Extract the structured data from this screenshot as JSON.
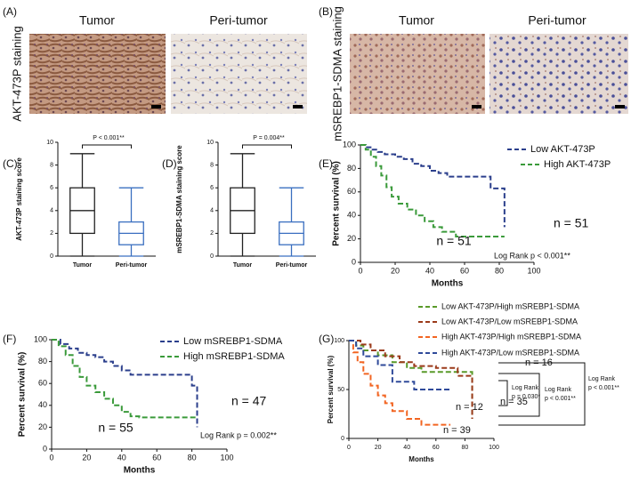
{
  "panels": {
    "A": {
      "label": "(A)",
      "ylabel": "AKT-473P staining",
      "columns": [
        "Tumor",
        "Peri-tumor"
      ]
    },
    "B": {
      "label": "(B)",
      "ylabel": "mSREBP1-SDMA staining",
      "columns": [
        "Tumor",
        "Peri-tumor"
      ]
    }
  },
  "chart_data": [
    {
      "type": "box",
      "panel": "(C)",
      "ylabel": "AKT-473P staining score",
      "categories": [
        "Tumor",
        "Peri-tumor"
      ],
      "boxes": [
        {
          "min": 0,
          "q1": 2,
          "median": 4,
          "q3": 6,
          "max": 9,
          "color": "#222222"
        },
        {
          "min": 0,
          "q1": 1,
          "median": 2,
          "q3": 3,
          "max": 6,
          "color": "#3a6fc0"
        }
      ],
      "ylim": [
        0,
        10
      ],
      "yticks": [
        0,
        2,
        4,
        6,
        8,
        10
      ],
      "annotations": [
        {
          "text": "P < 0.001**"
        }
      ]
    },
    {
      "type": "box",
      "panel": "(D)",
      "ylabel": "mSREBP1-SDMA  staining score",
      "categories": [
        "Tumor",
        "Peri-tumor"
      ],
      "boxes": [
        {
          "min": 0,
          "q1": 2,
          "median": 4,
          "q3": 6,
          "max": 9,
          "color": "#222222"
        },
        {
          "min": 0,
          "q1": 1,
          "median": 2,
          "q3": 3,
          "max": 6,
          "color": "#3a6fc0"
        }
      ],
      "ylim": [
        0,
        10
      ],
      "yticks": [
        0,
        2,
        4,
        6,
        8,
        10
      ],
      "annotations": [
        {
          "text": "P = 0.004**"
        }
      ]
    },
    {
      "type": "line",
      "panel": "(E)",
      "xlabel": "Months",
      "ylabel": "Percent survival (%)",
      "xlim": [
        0,
        100
      ],
      "xticks": [
        0,
        20,
        40,
        60,
        80,
        100
      ],
      "ylim": [
        0,
        100
      ],
      "yticks": [
        0,
        20,
        40,
        60,
        80,
        100
      ],
      "series": [
        {
          "name": "Low AKT-473P",
          "color": "#2b3f8c",
          "x": [
            0,
            3,
            3,
            7,
            7,
            10,
            10,
            14,
            14,
            20,
            20,
            25,
            25,
            30,
            30,
            35,
            35,
            40,
            40,
            45,
            45,
            50,
            50,
            75,
            75,
            83,
            83
          ],
          "values": [
            100,
            100,
            98,
            98,
            96,
            96,
            94,
            94,
            92,
            92,
            90,
            90,
            88,
            88,
            84,
            84,
            82,
            82,
            78,
            78,
            76,
            76,
            73,
            73,
            63,
            63,
            30
          ]
        },
        {
          "name": "High AKT-473P",
          "color": "#3a9a3a",
          "x": [
            0,
            3,
            3,
            6,
            6,
            9,
            9,
            12,
            12,
            15,
            15,
            18,
            18,
            22,
            22,
            27,
            27,
            32,
            32,
            37,
            37,
            42,
            42,
            47,
            47,
            55,
            55,
            83
          ],
          "values": [
            100,
            100,
            96,
            96,
            90,
            90,
            82,
            82,
            74,
            74,
            64,
            64,
            56,
            56,
            50,
            50,
            45,
            45,
            40,
            40,
            35,
            35,
            30,
            30,
            26,
            26,
            22,
            22
          ]
        }
      ],
      "annotations": [
        {
          "text": "n = 51",
          "color": "#2b3f8c"
        },
        {
          "text": "n = 51",
          "color": "#3a9a3a"
        },
        {
          "text": "Log Rank p < 0.001**"
        }
      ]
    },
    {
      "type": "line",
      "panel": "(F)",
      "xlabel": "Months",
      "ylabel": "Percent survival (%)",
      "xlim": [
        0,
        100
      ],
      "xticks": [
        0,
        20,
        40,
        60,
        80,
        100
      ],
      "ylim": [
        0,
        100
      ],
      "yticks": [
        0,
        20,
        40,
        60,
        80,
        100
      ],
      "series": [
        {
          "name": "Low mSREBP1-SDMA",
          "color": "#2b3f8c",
          "x": [
            0,
            5,
            5,
            10,
            10,
            15,
            15,
            20,
            20,
            25,
            25,
            30,
            30,
            35,
            35,
            40,
            40,
            45,
            45,
            80,
            80,
            83,
            83
          ],
          "values": [
            100,
            100,
            96,
            96,
            92,
            92,
            88,
            88,
            86,
            86,
            84,
            84,
            80,
            80,
            76,
            76,
            72,
            72,
            68,
            68,
            58,
            58,
            20
          ]
        },
        {
          "name": "High mSREBP1-SDMA",
          "color": "#3a9a3a",
          "x": [
            0,
            4,
            4,
            8,
            8,
            12,
            12,
            16,
            16,
            20,
            20,
            25,
            25,
            30,
            30,
            35,
            35,
            40,
            40,
            45,
            45,
            50,
            50,
            83
          ],
          "values": [
            100,
            100,
            94,
            94,
            86,
            86,
            76,
            76,
            66,
            66,
            58,
            58,
            52,
            52,
            46,
            46,
            40,
            40,
            34,
            34,
            30,
            30,
            29,
            29
          ]
        }
      ],
      "annotations": [
        {
          "text": "n =  47",
          "color": "#2b3f8c"
        },
        {
          "text": "n = 55",
          "color": "#3a9a3a"
        },
        {
          "text": "Log Rank p = 0.002**"
        }
      ]
    },
    {
      "type": "line",
      "panel": "(G)",
      "xlabel": "Months",
      "ylabel": "Percent survival (%)",
      "xlim": [
        0,
        100
      ],
      "xticks": [
        0,
        20,
        40,
        60,
        80,
        100
      ],
      "ylim": [
        0,
        100
      ],
      "yticks": [
        0,
        50,
        100
      ],
      "series": [
        {
          "name": "Low AKT-473P/High  mSREBP1-SDMA",
          "color": "#5a9a2a",
          "x": [
            0,
            5,
            5,
            10,
            10,
            20,
            20,
            30,
            30,
            40,
            40,
            50,
            50,
            85,
            85
          ],
          "values": [
            100,
            100,
            95,
            95,
            90,
            90,
            85,
            85,
            78,
            78,
            72,
            72,
            68,
            68,
            20
          ]
        },
        {
          "name": "Low AKT-473P/Low  mSREBP1-SDMA",
          "color": "#9b3a1a",
          "x": [
            0,
            8,
            8,
            15,
            15,
            25,
            25,
            35,
            35,
            45,
            45,
            60,
            60,
            75,
            75,
            85,
            85
          ],
          "values": [
            100,
            100,
            96,
            96,
            90,
            90,
            84,
            84,
            78,
            78,
            74,
            74,
            72,
            72,
            64,
            64,
            20
          ]
        },
        {
          "name": "High AKT-473P/High  mSREBP1-SDMA",
          "color": "#f26522",
          "x": [
            0,
            3,
            3,
            6,
            6,
            10,
            10,
            15,
            15,
            20,
            20,
            25,
            25,
            30,
            30,
            40,
            40,
            50,
            50,
            70
          ],
          "values": [
            100,
            100,
            88,
            88,
            78,
            78,
            66,
            66,
            54,
            54,
            44,
            44,
            36,
            36,
            28,
            28,
            20,
            20,
            14,
            14
          ]
        },
        {
          "name": "High AKT-473P/Low  mSREBP1-SDMA",
          "color": "#2f4a9a",
          "x": [
            0,
            5,
            5,
            10,
            10,
            20,
            20,
            30,
            30,
            45,
            45,
            70
          ],
          "values": [
            100,
            100,
            92,
            92,
            84,
            84,
            75,
            75,
            58,
            58,
            50,
            50
          ]
        }
      ],
      "annotations": [
        {
          "text": "n = 16",
          "color": "#5a9a2a"
        },
        {
          "text": "n = 35",
          "color": "#9b3a1a"
        },
        {
          "text": "n = 12",
          "color": "#2f4a9a"
        },
        {
          "text": "n = 39",
          "color": "#f26522"
        },
        {
          "text": "Log Rank"
        },
        {
          "text": "p = 0.030*"
        },
        {
          "text": "Log Rank"
        },
        {
          "text": "p < 0.001**"
        },
        {
          "text": "Log Rank"
        },
        {
          "text": "p < 0.001**"
        }
      ]
    }
  ]
}
